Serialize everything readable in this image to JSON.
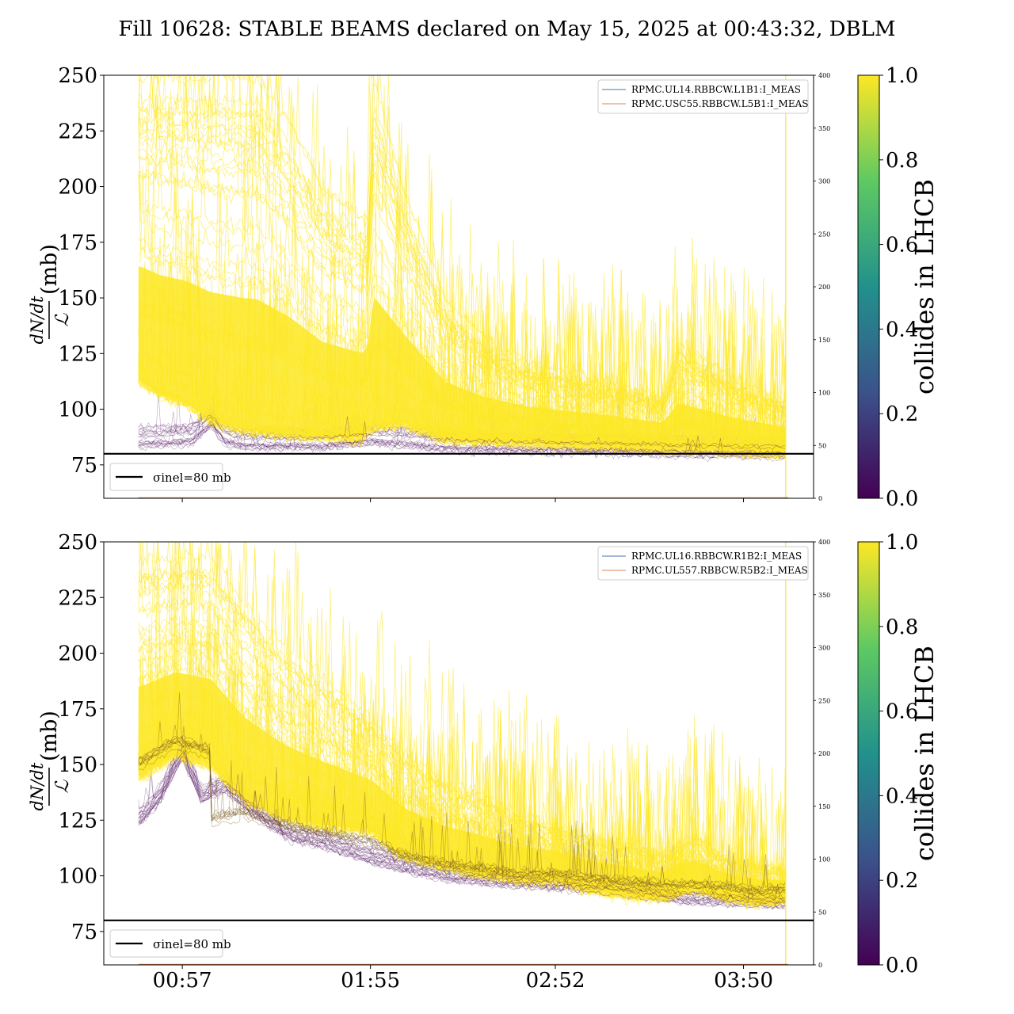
{
  "figure_title": "Fill 10628: STABLE BEAMS declared on May 15, 2025 at 00:43:32, DBLM",
  "colors": {
    "yellow": "#fde725",
    "purple": "#440154",
    "brown": "#7a5a20",
    "legend_blue": "#4c72b0",
    "legend_orange": "#dd8452",
    "threshold_line": "#000000"
  },
  "colormap": {
    "name": "viridis",
    "stops": [
      "#440154",
      "#3b528b",
      "#21918c",
      "#5ec962",
      "#fde725"
    ]
  },
  "chart_data": [
    {
      "type": "line",
      "panel": "top",
      "title": "",
      "ylabel_parts": {
        "numerator": "dN/dt",
        "denominator": "ℒ",
        "unit": "(mb)"
      },
      "ylim": [
        60,
        250
      ],
      "yticks": [
        75,
        100,
        125,
        150,
        175,
        200,
        225,
        250
      ],
      "right_axis": {
        "ylim": [
          0,
          400
        ],
        "ticks": [
          0,
          50,
          100,
          150,
          200,
          250,
          300,
          350,
          400
        ]
      },
      "x_ticks": [
        "00:57",
        "01:55",
        "02:52",
        "03:50"
      ],
      "x_tick_minutes": [
        57,
        115,
        172,
        230
      ],
      "xlim_minutes": [
        32.8,
        251.6
      ],
      "data_x_range_minutes": [
        43.5,
        242.8
      ],
      "threshold": {
        "value": 80,
        "label": "σinel=80 mb"
      },
      "legend_right": [
        "RPMC.UL14.RBBCW.L1B1:I_MEAS",
        "RPMC.USC55.RBBCW.L5B1:I_MEAS"
      ],
      "colorbar": {
        "label": "collides in LHCB",
        "ticks": [
          "0.0",
          "0.2",
          "0.4",
          "0.6",
          "0.8",
          "1.0"
        ],
        "range": [
          0,
          1
        ]
      },
      "series": [
        {
          "group": "collides=1.0 (yellow, main band)",
          "x": [
            44,
            50,
            58,
            66,
            76,
            88,
            100,
            112,
            115,
            125,
            138,
            155,
            172,
            190,
            205,
            210,
            225,
            238,
            242
          ],
          "y": [
            118,
            112,
            108,
            100,
            96,
            94,
            93,
            92,
            97,
            99,
            92,
            91,
            90,
            89,
            88,
            88,
            87,
            86,
            86
          ]
        },
        {
          "group": "collides=1.0 upper envelope",
          "x": [
            44,
            55,
            67,
            80,
            90,
            100,
            114,
            116,
            125,
            138,
            150,
            165,
            172,
            190,
            205,
            210,
            225,
            242
          ],
          "y": [
            250,
            250,
            250,
            250,
            230,
            200,
            185,
            250,
            200,
            150,
            132,
            120,
            118,
            112,
            105,
            130,
            115,
            104
          ]
        },
        {
          "group": "collides=0.0 (purple)",
          "x": [
            44,
            60,
            66,
            70,
            76,
            88,
            100,
            115,
            125,
            138,
            172,
            205,
            242
          ],
          "y": [
            87,
            88,
            96,
            88,
            86,
            86,
            86,
            88,
            87,
            85,
            84,
            83,
            82
          ]
        }
      ]
    },
    {
      "type": "line",
      "panel": "bottom",
      "title": "",
      "ylabel_parts": {
        "numerator": "dN/dt",
        "denominator": "ℒ",
        "unit": "(mb)"
      },
      "ylim": [
        60,
        250
      ],
      "yticks": [
        75,
        100,
        125,
        150,
        175,
        200,
        225,
        250
      ],
      "right_axis": {
        "ylim": [
          0,
          400
        ],
        "ticks": [
          0,
          50,
          100,
          150,
          200,
          250,
          300,
          350,
          400
        ]
      },
      "x_ticks": [
        "00:57",
        "01:55",
        "02:52",
        "03:50"
      ],
      "x_tick_minutes": [
        57,
        115,
        172,
        230
      ],
      "xlim_minutes": [
        32.8,
        251.6
      ],
      "data_x_range_minutes": [
        43.5,
        242.8
      ],
      "threshold": {
        "value": 80,
        "label": "σinel=80 mb"
      },
      "legend_right": [
        "RPMC.UL16.RBBCW.R1B2:I_MEAS",
        "RPMC.UL557.RBBCW.R5B2:I_MEAS"
      ],
      "colorbar": {
        "label": "collides in LHCB",
        "ticks": [
          "0.0",
          "0.2",
          "0.4",
          "0.6",
          "0.8",
          "1.0"
        ],
        "range": [
          0,
          1
        ]
      },
      "series": [
        {
          "group": "collides=1.0 (yellow, main band)",
          "x": [
            44,
            55,
            66,
            76,
            88,
            100,
            115,
            125,
            138,
            150,
            160,
            172,
            182,
            190,
            205,
            215,
            225,
            235,
            242
          ],
          "y": [
            150,
            160,
            155,
            140,
            132,
            128,
            126,
            115,
            110,
            106,
            104,
            104,
            100,
            98,
            96,
            100,
            96,
            94,
            95
          ]
        },
        {
          "group": "collides=1.0 upper envelope",
          "x": [
            44,
            55,
            66,
            76,
            88,
            100,
            115,
            125,
            138,
            150,
            160,
            172,
            182,
            190,
            205,
            215,
            225,
            242
          ],
          "y": [
            250,
            250,
            250,
            230,
            210,
            195,
            175,
            160,
            145,
            140,
            130,
            125,
            120,
            118,
            112,
            120,
            110,
            104
          ]
        },
        {
          "group": "collides=0.0 (purple)",
          "x": [
            44,
            50,
            57,
            63,
            70,
            80,
            90,
            100,
            115,
            125,
            138,
            150,
            172,
            190,
            210,
            242
          ],
          "y": [
            125,
            135,
            155,
            135,
            140,
            128,
            118,
            115,
            108,
            104,
            100,
            98,
            96,
            94,
            90,
            88
          ]
        },
        {
          "group": "collides=1.0 dark core (brown)",
          "x": [
            66,
            76,
            88,
            100,
            115,
            125,
            138,
            150,
            160,
            172,
            182,
            190,
            205,
            215,
            225,
            235,
            242
          ],
          "y": [
            125,
            128,
            122,
            118,
            115,
            108,
            104,
            102,
            100,
            100,
            98,
            97,
            95,
            95,
            94,
            92,
            93
          ]
        }
      ]
    }
  ]
}
